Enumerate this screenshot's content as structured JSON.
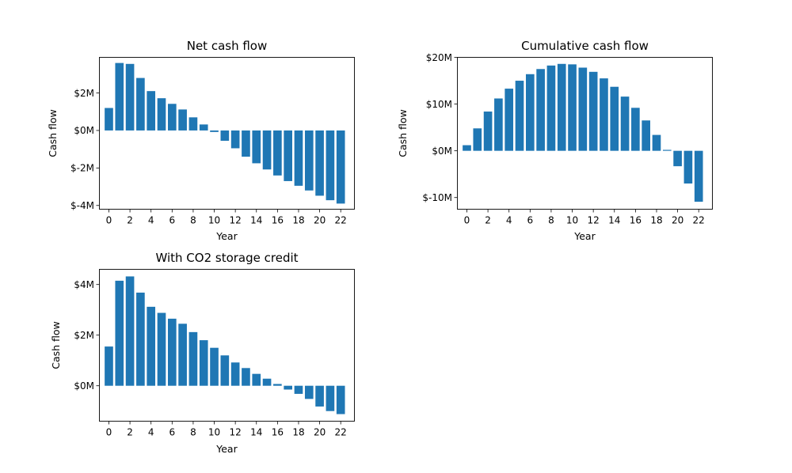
{
  "chart_data": [
    {
      "type": "bar",
      "title": "Net cash flow",
      "xlabel": "Year",
      "ylabel": "Cash flow",
      "x": [
        0,
        1,
        2,
        3,
        4,
        5,
        6,
        7,
        8,
        9,
        10,
        11,
        12,
        13,
        14,
        15,
        16,
        17,
        18,
        19,
        20,
        21,
        22
      ],
      "values": [
        1.2,
        3.6,
        3.55,
        2.8,
        2.1,
        1.72,
        1.42,
        1.12,
        0.7,
        0.32,
        -0.08,
        -0.55,
        -0.95,
        -1.4,
        -1.75,
        -2.08,
        -2.4,
        -2.7,
        -2.95,
        -3.2,
        -3.48,
        -3.72,
        -3.9
      ],
      "ylim": [
        -4.2,
        3.9
      ],
      "yticks": [
        -4,
        -2,
        0,
        2
      ],
      "ytick_labels": [
        "$-4M",
        "$-2M",
        "$0M",
        "$2M"
      ],
      "xticks": [
        0,
        2,
        4,
        6,
        8,
        10,
        12,
        14,
        16,
        18,
        20,
        22
      ],
      "color": "#1f77b4",
      "grid": false
    },
    {
      "type": "bar",
      "title": "Cumulative cash flow",
      "xlabel": "Year",
      "ylabel": "Cash flow",
      "x": [
        0,
        1,
        2,
        3,
        4,
        5,
        6,
        7,
        8,
        9,
        10,
        11,
        12,
        13,
        14,
        15,
        16,
        17,
        18,
        19,
        20,
        21,
        22
      ],
      "values": [
        1.2,
        4.8,
        8.4,
        11.2,
        13.3,
        15.0,
        16.4,
        17.5,
        18.25,
        18.6,
        18.5,
        17.8,
        16.9,
        15.5,
        13.7,
        11.6,
        9.2,
        6.5,
        3.4,
        0.2,
        -3.3,
        -7.0,
        -10.9
      ],
      "ylim": [
        -12.5,
        20.0
      ],
      "yticks": [
        -10,
        0,
        10,
        20
      ],
      "ytick_labels": [
        "$-10M",
        "$0M",
        "$10M",
        "$20M"
      ],
      "xticks": [
        0,
        2,
        4,
        6,
        8,
        10,
        12,
        14,
        16,
        18,
        20,
        22
      ],
      "color": "#1f77b4",
      "grid": false
    },
    {
      "type": "bar",
      "title": "With CO2 storage credit",
      "xlabel": "Year",
      "ylabel": "Cash flow",
      "x": [
        0,
        1,
        2,
        3,
        4,
        5,
        6,
        7,
        8,
        9,
        10,
        11,
        12,
        13,
        14,
        15,
        16,
        17,
        18,
        19,
        20,
        21,
        22
      ],
      "values": [
        1.55,
        4.15,
        4.32,
        3.68,
        3.12,
        2.88,
        2.65,
        2.45,
        2.12,
        1.8,
        1.5,
        1.2,
        0.92,
        0.7,
        0.47,
        0.28,
        0.07,
        -0.15,
        -0.32,
        -0.52,
        -0.82,
        -1.0,
        -1.12
      ],
      "ylim": [
        -1.4,
        4.6
      ],
      "yticks": [
        0,
        2,
        4
      ],
      "ytick_labels": [
        "$0M",
        "$2M",
        "$4M"
      ],
      "xticks": [
        0,
        2,
        4,
        6,
        8,
        10,
        12,
        14,
        16,
        18,
        20,
        22
      ],
      "color": "#1f77b4",
      "grid": false
    }
  ]
}
